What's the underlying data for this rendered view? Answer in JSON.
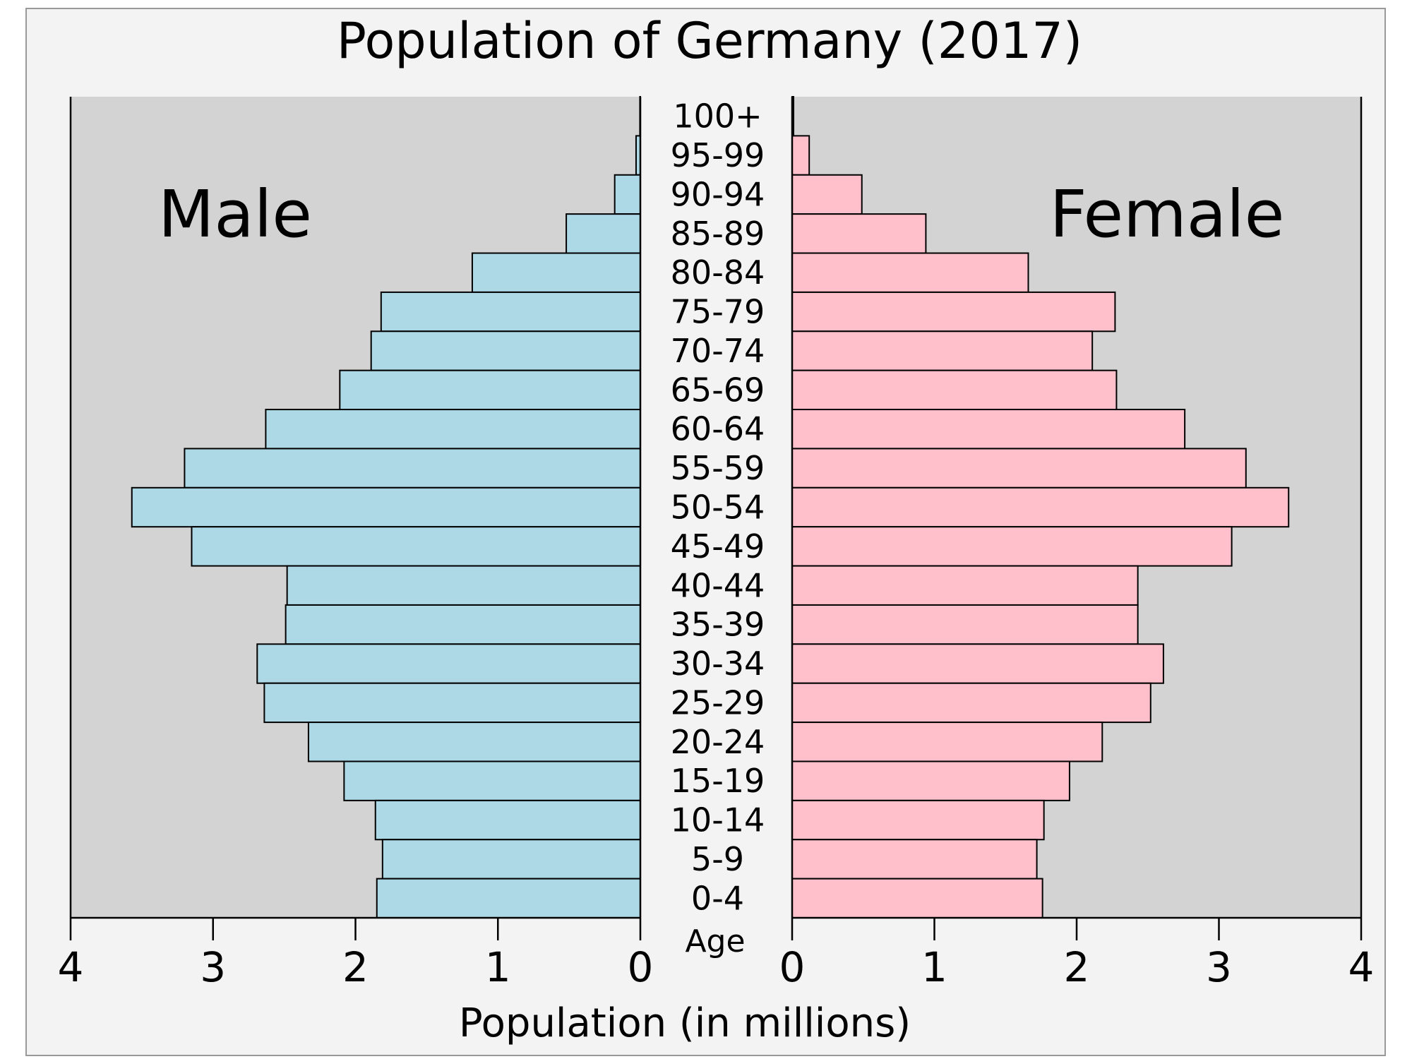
{
  "chart_data": {
    "type": "bar",
    "subtype": "population-pyramid",
    "title": "Population of Germany (2017)",
    "xlabel": "Population (in millions)",
    "ylabel": "Age",
    "xlim": [
      0,
      4
    ],
    "x_ticks": [
      "0",
      "1",
      "2",
      "3",
      "4"
    ],
    "categories": [
      "100+",
      "95-99",
      "90-94",
      "85-89",
      "80-84",
      "75-79",
      "70-74",
      "65-69",
      "60-64",
      "55-59",
      "50-54",
      "45-49",
      "40-44",
      "35-39",
      "30-34",
      "25-29",
      "20-24",
      "15-19",
      "10-14",
      "5-9",
      "0-4"
    ],
    "series": [
      {
        "name": "Male",
        "side": "left",
        "color": "#add8e6",
        "values": [
          0.003,
          0.03,
          0.18,
          0.52,
          1.18,
          1.82,
          1.89,
          2.11,
          2.63,
          3.2,
          3.57,
          3.15,
          2.48,
          2.49,
          2.69,
          2.64,
          2.33,
          2.08,
          1.86,
          1.81,
          1.85
        ]
      },
      {
        "name": "Female",
        "side": "right",
        "color": "#ffc0cb",
        "values": [
          0.01,
          0.12,
          0.49,
          0.94,
          1.66,
          2.27,
          2.11,
          2.28,
          2.76,
          3.19,
          3.49,
          3.09,
          2.43,
          2.43,
          2.61,
          2.52,
          2.18,
          1.95,
          1.77,
          1.72,
          1.76
        ]
      }
    ],
    "grid": false,
    "legend": "none"
  }
}
